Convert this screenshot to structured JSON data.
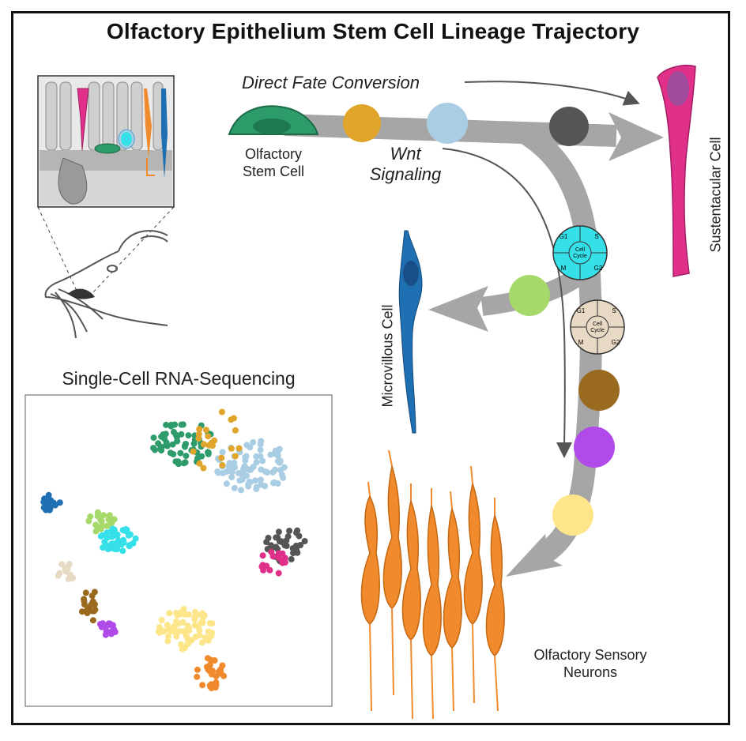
{
  "title": "Olfactory Epithelium Stem Cell Lineage Trajectory",
  "labels": {
    "direct_fate_conversion": "Direct Fate Conversion",
    "wnt_signaling_line1": "Wnt",
    "wnt_signaling_line2": "Signaling",
    "olfactory_stem_cell_line1": "Olfactory",
    "olfactory_stem_cell_line2": "Stem Cell",
    "sustentacular_cell": "Sustentacular Cell",
    "microvillous_cell": "Microvillous Cell",
    "olfactory_sensory_neurons_line1": "Olfactory Sensory",
    "olfactory_sensory_neurons_line2": "Neurons",
    "single_cell_rna_seq": "Single-Cell RNA-Sequencing"
  },
  "cell_cycle": {
    "center_line1": "Cell",
    "center_line2": "Cycle",
    "phases": [
      "G1",
      "S",
      "G2",
      "M"
    ]
  },
  "colors": {
    "stem_green": "#2e9b6b",
    "orange_gold": "#e0a52a",
    "light_blue": "#a9cde3",
    "dark_gray": "#555555",
    "magenta": "#e0308a",
    "cyan": "#35e0e8",
    "light_green": "#a6d96a",
    "tan": "#e8d9c5",
    "brown": "#9a6a1f",
    "purple": "#b04ae8",
    "yellow": "#fde68a",
    "neuron_orange": "#f08a2c",
    "blue": "#1f6fb3",
    "arrow_gray": "#a6a6a6"
  }
}
